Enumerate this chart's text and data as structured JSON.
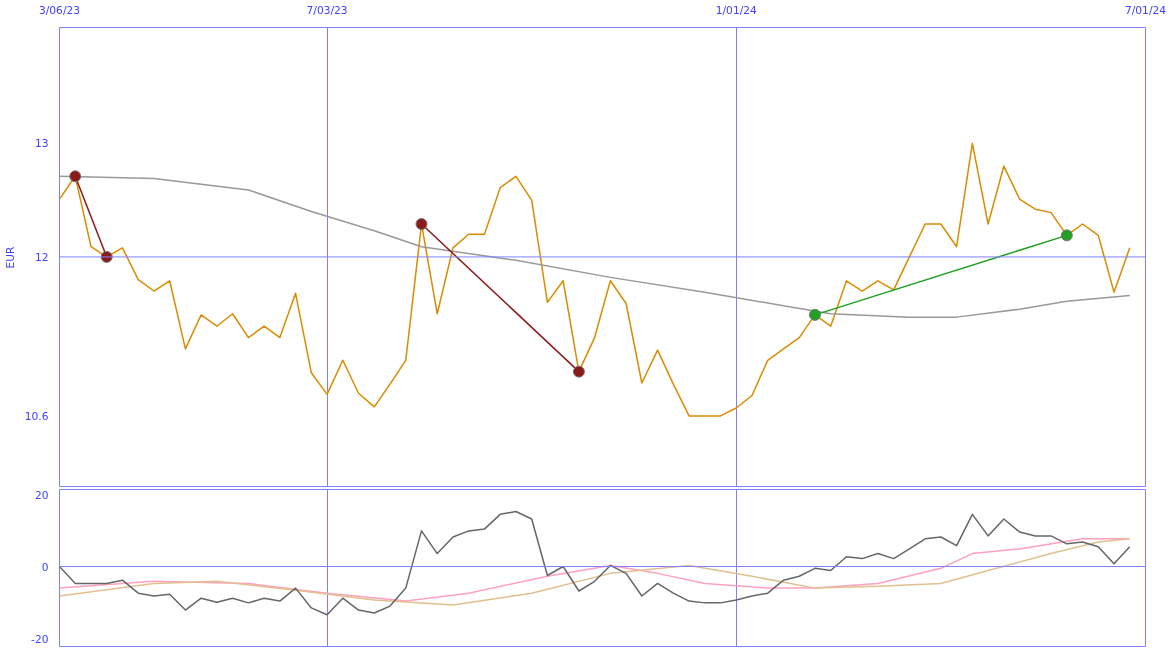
{
  "chart_data": [
    {
      "type": "line",
      "ylabel": "EUR",
      "x": [
        "2023-03-06",
        "2023-03-13",
        "2023-03-20",
        "2023-03-27",
        "2023-04-03",
        "2023-04-10",
        "2023-04-17",
        "2023-04-24",
        "2023-05-01",
        "2023-05-08",
        "2023-05-15",
        "2023-05-22",
        "2023-05-29",
        "2023-06-05",
        "2023-06-12",
        "2023-06-19",
        "2023-06-26",
        "2023-07-03",
        "2023-07-10",
        "2023-07-17",
        "2023-07-24",
        "2023-07-31",
        "2023-08-07",
        "2023-08-14",
        "2023-08-21",
        "2023-08-28",
        "2023-09-04",
        "2023-09-11",
        "2023-09-18",
        "2023-09-25",
        "2023-10-02",
        "2023-10-09",
        "2023-10-16",
        "2023-10-23",
        "2023-10-30",
        "2023-11-06",
        "2023-11-13",
        "2023-11-20",
        "2023-11-27",
        "2023-12-04",
        "2023-12-11",
        "2023-12-18",
        "2023-12-25",
        "2024-01-01",
        "2024-01-08",
        "2024-01-15",
        "2024-01-22",
        "2024-01-29",
        "2024-02-05",
        "2024-02-12",
        "2024-02-19",
        "2024-02-26",
        "2024-03-04",
        "2024-03-11",
        "2024-03-18",
        "2024-03-25",
        "2024-04-01",
        "2024-04-08",
        "2024-04-15",
        "2024-04-22",
        "2024-04-29",
        "2024-05-06",
        "2024-05-13",
        "2024-05-20",
        "2024-05-27",
        "2024-06-03",
        "2024-06-10",
        "2024-06-17",
        "2024-06-24"
      ],
      "series": [
        {
          "color": "#d98c00",
          "values": [
            12.51,
            12.71,
            12.09,
            12.0,
            12.08,
            11.8,
            11.7,
            11.79,
            11.19,
            11.49,
            11.39,
            11.5,
            11.29,
            11.39,
            11.29,
            11.68,
            10.98,
            10.79,
            11.09,
            10.8,
            10.68,
            10.88,
            11.09,
            12.29,
            11.5,
            12.08,
            12.2,
            12.2,
            12.61,
            12.71,
            12.5,
            11.6,
            11.79,
            10.99,
            11.29,
            11.79,
            11.59,
            10.89,
            11.18,
            10.88,
            10.6,
            10.6,
            10.6,
            10.67,
            10.78,
            11.09,
            11.19,
            11.29,
            11.49,
            11.39,
            11.79,
            11.7,
            11.79,
            11.71,
            12.0,
            12.29,
            12.29,
            12.09,
            13.0,
            12.29,
            12.8,
            12.51,
            12.42,
            12.39,
            12.19,
            12.29,
            12.19,
            11.69,
            12.08
          ]
        },
        {
          "color": "#999999",
          "x": [
            "2023-03-06",
            "2023-04-17",
            "2023-05-29",
            "2023-06-26",
            "2023-07-24",
            "2023-08-14",
            "2023-09-25",
            "2023-11-06",
            "2023-12-18",
            "2024-01-22",
            "2024-02-12",
            "2024-03-18",
            "2024-04-08",
            "2024-05-06",
            "2024-05-27",
            "2024-06-24"
          ],
          "values": [
            12.71,
            12.69,
            12.59,
            12.4,
            12.23,
            12.09,
            11.97,
            11.82,
            11.69,
            11.57,
            11.5,
            11.47,
            11.47,
            11.54,
            11.61,
            11.66
          ]
        },
        {
          "color": "#8b1a1a",
          "marker": "circle",
          "x": [
            "2023-03-13",
            "2023-03-27"
          ],
          "values": [
            12.71,
            12.0
          ]
        },
        {
          "color": "#8b1a1a",
          "marker": "circle",
          "x": [
            "2023-08-14",
            "2023-10-23"
          ],
          "values": [
            12.29,
            10.99
          ]
        },
        {
          "color": "#22a022",
          "marker": "circle",
          "x": [
            "2024-02-05",
            "2024-05-27"
          ],
          "values": [
            11.49,
            12.19
          ]
        }
      ],
      "xlim": [
        "2023-03-06",
        "2024-07-01"
      ],
      "xticks": [
        {
          "value": "2023-03-06",
          "label": "3/06/23"
        },
        {
          "value": "2023-07-03",
          "label": "7/03/23"
        },
        {
          "value": "2024-01-01",
          "label": "1/01/24"
        },
        {
          "value": "2024-07-01",
          "label": "7/01/24"
        }
      ],
      "ylim": [
        9.97,
        14.02
      ],
      "yticks": [
        10.6,
        12,
        13
      ],
      "grid": "x",
      "ref_lines": [
        {
          "axis": "y",
          "value": 12,
          "color": "#8080ff"
        }
      ]
    },
    {
      "type": "line",
      "x": [
        "2023-03-06",
        "2023-03-13",
        "2023-03-20",
        "2023-03-27",
        "2023-04-03",
        "2023-04-10",
        "2023-04-17",
        "2023-04-24",
        "2023-05-01",
        "2023-05-08",
        "2023-05-15",
        "2023-05-22",
        "2023-05-29",
        "2023-06-05",
        "2023-06-12",
        "2023-06-19",
        "2023-06-26",
        "2023-07-03",
        "2023-07-10",
        "2023-07-17",
        "2023-07-24",
        "2023-07-31",
        "2023-08-07",
        "2023-08-14",
        "2023-08-21",
        "2023-08-28",
        "2023-09-04",
        "2023-09-11",
        "2023-09-18",
        "2023-09-25",
        "2023-10-02",
        "2023-10-09",
        "2023-10-16",
        "2023-10-23",
        "2023-10-30",
        "2023-11-06",
        "2023-11-13",
        "2023-11-20",
        "2023-11-27",
        "2023-12-04",
        "2023-12-11",
        "2023-12-18",
        "2023-12-25",
        "2024-01-01",
        "2024-01-08",
        "2024-01-15",
        "2024-01-22",
        "2024-01-29",
        "2024-02-05",
        "2024-02-12",
        "2024-02-19",
        "2024-02-26",
        "2024-03-04",
        "2024-03-11",
        "2024-03-18",
        "2024-03-25",
        "2024-04-01",
        "2024-04-08",
        "2024-04-15",
        "2024-04-22",
        "2024-04-29",
        "2024-05-06",
        "2024-05-13",
        "2024-05-20",
        "2024-05-27",
        "2024-06-03",
        "2024-06-10",
        "2024-06-17",
        "2024-06-24"
      ],
      "series": [
        {
          "color": "#ffa0c0",
          "x": [
            "2023-03-06",
            "2023-04-17",
            "2023-05-29",
            "2023-07-03",
            "2023-08-07",
            "2023-09-04",
            "2023-10-09",
            "2023-11-06",
            "2023-11-27",
            "2023-12-18",
            "2024-01-15",
            "2024-02-05",
            "2024-03-04",
            "2024-04-01",
            "2024-04-15",
            "2024-05-06",
            "2024-06-03",
            "2024-06-24"
          ],
          "values": [
            -6.0,
            -4.1,
            -4.7,
            -7.4,
            -9.6,
            -7.4,
            -2.7,
            0.3,
            -1.9,
            -4.7,
            -6.0,
            -6.0,
            -4.7,
            -0.5,
            3.6,
            4.9,
            7.7,
            7.7
          ]
        },
        {
          "color": "#e0c090",
          "x": [
            "2023-03-06",
            "2023-04-17",
            "2023-05-15",
            "2023-06-19",
            "2023-07-24",
            "2023-08-28",
            "2023-10-02",
            "2023-11-06",
            "2023-12-11",
            "2024-01-08",
            "2024-02-05",
            "2024-03-04",
            "2024-04-01",
            "2024-04-22",
            "2024-05-20",
            "2024-06-10",
            "2024-06-24"
          ],
          "values": [
            -8.2,
            -4.7,
            -4.1,
            -6.6,
            -9.3,
            -10.7,
            -7.4,
            -1.9,
            0.3,
            -2.7,
            -6.0,
            -5.5,
            -4.7,
            -1.1,
            3.6,
            6.8,
            7.7
          ]
        },
        {
          "color": "#666666",
          "values": [
            0,
            -4.7,
            -4.7,
            -4.7,
            -3.8,
            -7.4,
            -8.2,
            -7.7,
            -12.1,
            -8.8,
            -9.9,
            -8.8,
            -10.1,
            -8.8,
            -9.6,
            -6.0,
            -11.5,
            -13.4,
            -8.8,
            -12.1,
            -12.9,
            -11.0,
            -6.0,
            9.9,
            3.6,
            8.2,
            9.9,
            10.4,
            14.5,
            15.3,
            13.2,
            -2.5,
            0,
            -6.8,
            -4.1,
            0.3,
            -1.9,
            -8.2,
            -4.7,
            -7.4,
            -9.6,
            -10.1,
            -10.1,
            -9.3,
            -8.2,
            -7.4,
            -3.8,
            -2.7,
            -0.5,
            -1.1,
            2.7,
            2.2,
            3.6,
            2.2,
            4.9,
            7.7,
            8.2,
            5.8,
            14.5,
            8.5,
            13.2,
            9.6,
            8.5,
            8.5,
            6.3,
            6.8,
            5.5,
            0.8,
            5.5
          ]
        }
      ],
      "xlim": [
        "2023-03-06",
        "2024-07-01"
      ],
      "xticks": [
        {
          "value": "2023-07-03",
          "label": null
        },
        {
          "value": "2024-01-01",
          "label": null
        }
      ],
      "ylim": [
        -22.5,
        21.4
      ],
      "yticks": [
        20,
        0,
        -20
      ],
      "grid": "x",
      "tick_labels": "y",
      "ref_lines": [
        {
          "axis": "y",
          "value": 0,
          "color": "#8080ff"
        }
      ]
    }
  ]
}
